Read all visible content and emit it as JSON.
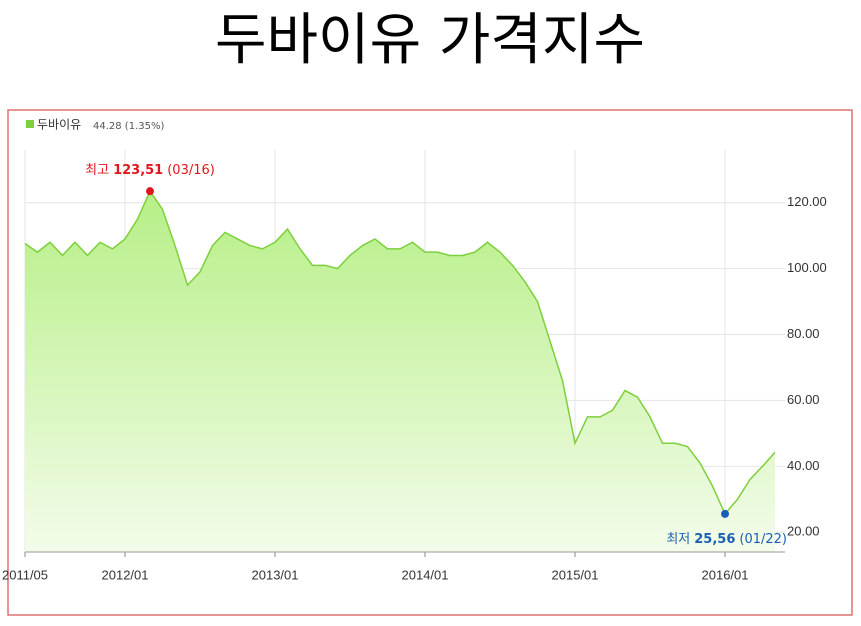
{
  "chart_data": {
    "type": "area",
    "title": "두바이유 가격지수",
    "legend_value": "44.28 (1.35%)",
    "x": [
      "2011/05",
      null,
      null,
      null,
      null,
      null,
      null,
      null,
      "2012/01",
      null,
      null,
      null,
      null,
      null,
      null,
      null,
      null,
      null,
      null,
      null,
      "2013/01",
      null,
      null,
      null,
      null,
      null,
      null,
      null,
      null,
      null,
      null,
      null,
      "2014/01",
      null,
      null,
      null,
      null,
      null,
      null,
      null,
      null,
      null,
      null,
      null,
      "2015/01",
      null,
      null,
      null,
      null,
      null,
      null,
      null,
      null,
      null,
      null,
      null,
      "2016/01",
      null,
      null,
      null,
      null
    ],
    "series": [
      {
        "name": "두바이유",
        "color": "#7dcf3c",
        "values": [
          107.6,
          105,
          108,
          104,
          108,
          104,
          108,
          106,
          109,
          115,
          123.51,
          118,
          107,
          95,
          99,
          107,
          111,
          109,
          107,
          106,
          108,
          112,
          106,
          101,
          101,
          100,
          104,
          107,
          109,
          106,
          106,
          108,
          105,
          105,
          104,
          104,
          105,
          108,
          105,
          101,
          96,
          90,
          78,
          66,
          47,
          55,
          55,
          57,
          63,
          61,
          55,
          47,
          47,
          46,
          41,
          34,
          25.56,
          30,
          36,
          40,
          44.28
        ]
      }
    ],
    "annotations": [
      {
        "label": "최고",
        "value": "123,51",
        "date": "(03/16)",
        "color": "#e0161d",
        "index": 10
      },
      {
        "label": "최저",
        "value": "25,56",
        "date": "(01/22)",
        "color": "#1a5fb4",
        "index": 56
      }
    ],
    "ylim": [
      14,
      136
    ],
    "yticks": [
      {
        "value": 20,
        "label": "20.00"
      },
      {
        "value": 40,
        "label": "40.00"
      },
      {
        "value": 60,
        "label": "60.00"
      },
      {
        "value": 80,
        "label": "80.00"
      },
      {
        "value": 100,
        "label": "100.00"
      },
      {
        "value": 120,
        "label": "120.00"
      }
    ],
    "grid": true
  }
}
